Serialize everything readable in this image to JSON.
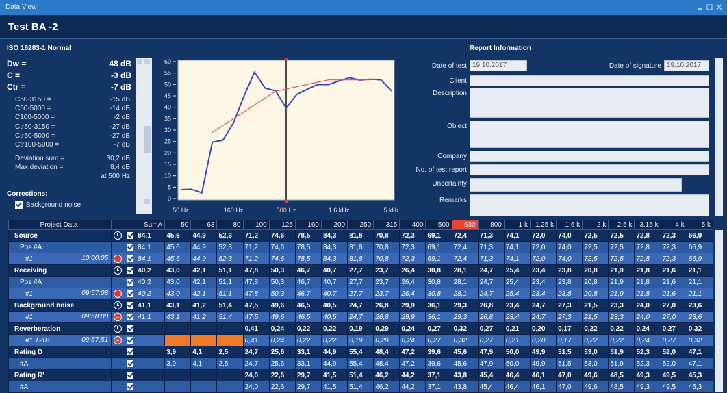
{
  "window": {
    "title": "Data View"
  },
  "header": {
    "title": "Test BA -2"
  },
  "results": {
    "method": "ISO 16283-1 Normal",
    "main": [
      {
        "label": "Dw =",
        "value": "48 dB"
      },
      {
        "label": "C =",
        "value": "-3 dB"
      },
      {
        "label": "Ctr =",
        "value": "-7 dB"
      }
    ],
    "terms": [
      {
        "label": "C50-3150 =",
        "value": "-15 dB"
      },
      {
        "label": "C50-5000 =",
        "value": "-14 dB"
      },
      {
        "label": "C100-5000 =",
        "value": "-2 dB"
      },
      {
        "label": "Ctr50-3150 =",
        "value": "-27 dB"
      },
      {
        "label": "Ctr50-5000 =",
        "value": "-27 dB"
      },
      {
        "label": "Ctr100-5000 =",
        "value": "-7 dB"
      }
    ],
    "deviation": [
      {
        "label": "Deviation sum =",
        "value": "30,2 dB"
      },
      {
        "label": "Max deviation =",
        "value": "8,4 dB"
      }
    ],
    "max_deviation_at": "at 500 Hz",
    "corrections_title": "Corrections:",
    "corrections": [
      "Background noise"
    ]
  },
  "chart_data": {
    "type": "line",
    "categories": [
      "50 Hz",
      null,
      null,
      null,
      null,
      "160 Hz",
      null,
      null,
      null,
      null,
      "500 Hz",
      null,
      null,
      null,
      null,
      "1.6 kHz",
      null,
      null,
      null,
      null,
      "5 kHz"
    ],
    "series": [
      {
        "color": "#3f44b8",
        "values": [
          3.9,
          4.1,
          2.5,
          24.7,
          25.6,
          33.1,
          44.9,
          55.4,
          48.4,
          47.2,
          39.6,
          45.6,
          47.9,
          50.0,
          49.9,
          51.5,
          53.0,
          51.9,
          52.3,
          52.0,
          47.1
        ]
      },
      {
        "color": "#d9534f",
        "values": [
          null,
          null,
          null,
          29,
          32,
          35,
          38,
          41,
          44,
          47,
          48,
          49,
          50,
          51,
          52,
          52,
          52,
          52,
          52,
          null,
          null
        ]
      }
    ],
    "ylim": [
      0,
      60
    ],
    "yticks": [
      0,
      5,
      10,
      15,
      20,
      25,
      30,
      35,
      40,
      45,
      50,
      55,
      60
    ],
    "selected": "500 Hz"
  },
  "report": {
    "title": "Report Information",
    "date_of_test": {
      "label": "Date of test",
      "value": "19.10.2017"
    },
    "date_of_signature": {
      "label": "Date of signature",
      "value": "19.10.2017"
    },
    "fields": [
      "Client",
      "Description",
      "Object",
      "Company",
      "No. of test report",
      "Uncertainty",
      "Remarks"
    ]
  },
  "table": {
    "header": {
      "name": "Project Data",
      "columns": [
        "SumA",
        "50",
        "63",
        "80",
        "100",
        "125",
        "160",
        "200",
        "250",
        "315",
        "400",
        "500",
        "630",
        "800",
        "1 k",
        "1.25 k",
        "1.6 k",
        "2 k",
        "2.5 k",
        "3.15 k",
        "4 k",
        "5 k"
      ],
      "selected_column": "630"
    },
    "rows": [
      {
        "name": "Source",
        "level": 0,
        "icon": "clock",
        "cells": [
          "84,1",
          "45,6",
          "44,9",
          "52,3",
          "71,2",
          "74,6",
          "78,5",
          "84,3",
          "81,8",
          "70,8",
          "72,3",
          "69,1",
          "72,4",
          "71,3",
          "74,1",
          "72,0",
          "74,0",
          "72,5",
          "72,5",
          "72,8",
          "72,3",
          "66,9"
        ]
      },
      {
        "name": "Pos #A",
        "level": 1,
        "cells": [
          "84,1",
          "45,6",
          "44,9",
          "52,3",
          "71,2",
          "74,6",
          "78,5",
          "84,3",
          "81,8",
          "70,8",
          "72,3",
          "69,1",
          "72,4",
          "71,3",
          "74,1",
          "72,0",
          "74,0",
          "72,5",
          "72,5",
          "72,8",
          "72,3",
          "66,9"
        ]
      },
      {
        "name": "#1",
        "time": "10:00:05",
        "level": 2,
        "icon": "alert",
        "cells": [
          "84,1",
          "45,6",
          "44,9",
          "52,3",
          "71,2",
          "74,6",
          "78,5",
          "84,3",
          "81,8",
          "70,8",
          "72,3",
          "69,1",
          "72,4",
          "71,3",
          "74,1",
          "72,0",
          "74,0",
          "72,5",
          "72,5",
          "72,8",
          "72,3",
          "66,9"
        ]
      },
      {
        "name": "Receiving",
        "level": 0,
        "icon": "clock",
        "cells": [
          "40,2",
          "43,0",
          "42,1",
          "51,1",
          "47,8",
          "50,3",
          "46,7",
          "40,7",
          "27,7",
          "23,7",
          "26,4",
          "30,8",
          "28,1",
          "24,7",
          "25,4",
          "23,4",
          "23,8",
          "20,8",
          "21,9",
          "21,8",
          "21,6",
          "21,1"
        ]
      },
      {
        "name": "Pos #A",
        "level": 1,
        "cells": [
          "40,2",
          "43,0",
          "42,1",
          "51,1",
          "47,8",
          "50,3",
          "46,7",
          "40,7",
          "27,7",
          "23,7",
          "26,4",
          "30,8",
          "28,1",
          "24,7",
          "25,4",
          "23,4",
          "23,8",
          "20,8",
          "21,9",
          "21,8",
          "21,6",
          "21,1"
        ]
      },
      {
        "name": "#1",
        "time": "09:57:08",
        "level": 2,
        "icon": "alert",
        "cells": [
          "40,2",
          "43,0",
          "42,1",
          "51,1",
          "47,8",
          "50,3",
          "46,7",
          "40,7",
          "27,7",
          "23,7",
          "26,4",
          "30,8",
          "28,1",
          "24,7",
          "25,4",
          "23,4",
          "23,8",
          "20,8",
          "21,9",
          "21,8",
          "21,6",
          "21,1"
        ]
      },
      {
        "name": "Background noise",
        "level": 0,
        "icon": "clock",
        "cells": [
          "41,1",
          "43,1",
          "41,2",
          "51,4",
          "47,5",
          "49,6",
          "46,5",
          "40,5",
          "24,7",
          "26,8",
          "29,9",
          "36,1",
          "29,3",
          "26,8",
          "23,4",
          "24,7",
          "27,3",
          "21,5",
          "23,3",
          "24,0",
          "27,0",
          "23,6"
        ]
      },
      {
        "name": "#1",
        "time": "09:58:08",
        "level": 2,
        "icon": "alert",
        "cells": [
          "41,1",
          "43,1",
          "41,2",
          "51,4",
          "47,5",
          "49,6",
          "46,5",
          "40,5",
          "24,7",
          "26,8",
          "29,9",
          "36,1",
          "29,3",
          "26,8",
          "23,4",
          "24,7",
          "27,3",
          "21,5",
          "23,3",
          "24,0",
          "27,0",
          "23,6"
        ]
      },
      {
        "name": "Reverberation",
        "level": 0,
        "icon": "clock",
        "cells": [
          null,
          null,
          null,
          null,
          "0,41",
          "0,24",
          "0,22",
          "0,22",
          "0,19",
          "0,29",
          "0,24",
          "0,27",
          "0,32",
          "0,27",
          "0,21",
          "0,20",
          "0,17",
          "0,22",
          "0,22",
          "0,24",
          "0,27",
          "0,32"
        ]
      },
      {
        "name": "#1 T20+",
        "time": "09:57:51",
        "level": 2,
        "icon": "alert",
        "cells": [
          null,
          null,
          null,
          null,
          "0,41",
          "0,24",
          "0,22",
          "0,22",
          "0,19",
          "0,29",
          "0,24",
          "0,27",
          "0,32",
          "0,27",
          "0,21",
          "0,20",
          "0,17",
          "0,22",
          "0,22",
          "0,24",
          "0,27",
          "0,32"
        ]
      },
      {
        "name": "Rating D",
        "level": 0,
        "cells": [
          null,
          "3,9",
          "4,1",
          "2,5",
          "24,7",
          "25,6",
          "33,1",
          "44,9",
          "55,4",
          "48,4",
          "47,2",
          "39,6",
          "45,6",
          "47,9",
          "50,0",
          "49,9",
          "51,5",
          "53,0",
          "51,9",
          "52,3",
          "52,0",
          "47,1"
        ]
      },
      {
        "name": "#A",
        "level": 1,
        "cells": [
          null,
          "3,9",
          "4,1",
          "2,5",
          "24,7",
          "25,6",
          "33,1",
          "44,9",
          "55,4",
          "48,4",
          "47,2",
          "39,6",
          "45,6",
          "47,9",
          "50,0",
          "49,9",
          "51,5",
          "53,0",
          "51,9",
          "52,3",
          "52,0",
          "47,1"
        ]
      },
      {
        "name": "Rating R'",
        "level": 0,
        "cells": [
          null,
          null,
          null,
          null,
          "24,0",
          "22,6",
          "29,7",
          "41,5",
          "51,4",
          "46,2",
          "44,2",
          "37,1",
          "43,8",
          "45,4",
          "46,4",
          "46,1",
          "47,0",
          "49,6",
          "48,5",
          "49,3",
          "49,5",
          "45,3"
        ]
      },
      {
        "name": "#A",
        "level": 1,
        "cells": [
          null,
          null,
          null,
          null,
          "24,0",
          "22,6",
          "29,7",
          "41,5",
          "51,4",
          "46,2",
          "44,2",
          "37,1",
          "43,8",
          "45,4",
          "46,4",
          "46,1",
          "47,0",
          "49,6",
          "48,5",
          "49,3",
          "49,5",
          "45,3"
        ]
      }
    ]
  }
}
